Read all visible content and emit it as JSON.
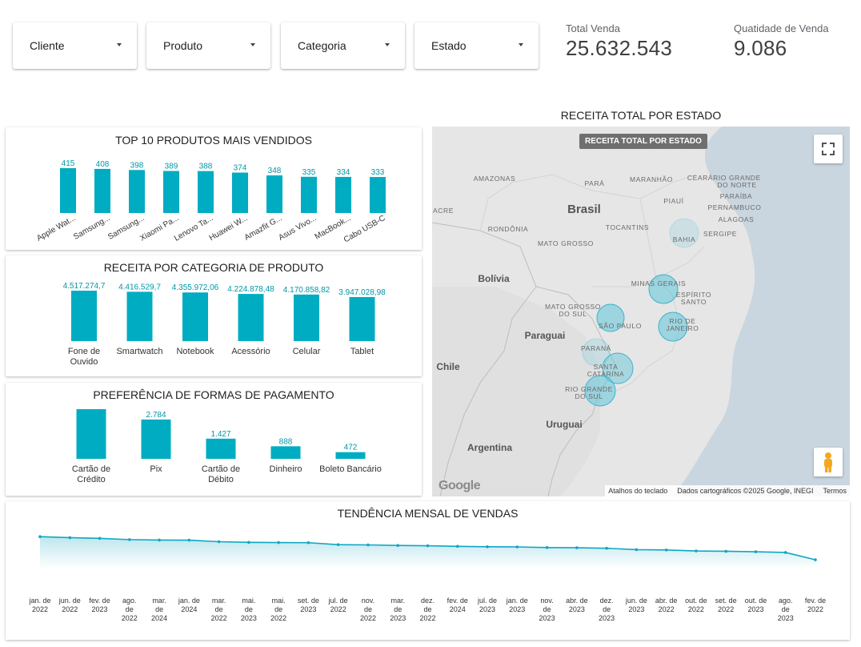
{
  "filters": [
    {
      "label": "Cliente"
    },
    {
      "label": "Produto"
    },
    {
      "label": "Categoria"
    },
    {
      "label": "Estado"
    }
  ],
  "kpis": {
    "total_venda": {
      "label": "Total Venda",
      "value": "25.632.543"
    },
    "quantidade_venda": {
      "label": "Quatidade de Venda",
      "value": "9.086"
    }
  },
  "colors": {
    "bar": "#00acc1",
    "label": "#0097a7",
    "line": "#11a6c4",
    "map_bubble": "#5ec4d8"
  },
  "chart_data": [
    {
      "type": "bar",
      "title": "TOP 10 PRODUTOS MAIS VENDIDOS",
      "categories": [
        "Apple Wat...",
        "Samsung...",
        "Samsung...",
        "Xiaomi Pa...",
        "Lenovo Ta...",
        "Huawei W...",
        "Amazfit G...",
        "Asus Vivo...",
        "MacBook...",
        "Cabo USB-C"
      ],
      "values": [
        415,
        408,
        398,
        389,
        388,
        374,
        348,
        335,
        334,
        333
      ],
      "value_labels": [
        "415",
        "408",
        "398",
        "389",
        "388",
        "374",
        "348",
        "335",
        "334",
        "333"
      ],
      "ylim": [
        0,
        415
      ]
    },
    {
      "type": "bar",
      "title": "RECEITA POR CATEGORIA DE PRODUTO",
      "categories": [
        [
          "Fone de",
          "Ouvido"
        ],
        [
          "Smartwatch"
        ],
        [
          "Notebook"
        ],
        [
          "Acessório"
        ],
        [
          "Celular"
        ],
        [
          "Tablet"
        ]
      ],
      "values": [
        4517274.7,
        4416529.7,
        4355972.06,
        4224878.48,
        4170858.82,
        3947028.98
      ],
      "value_labels": [
        "4.517.274,7",
        "4.416.529,7",
        "4.355.972,06",
        "4.224.878,48",
        "4.170.858,82",
        "3.947.028,98"
      ],
      "ylim": [
        0,
        4517274.7
      ]
    },
    {
      "type": "bar",
      "title": "PREFERÊNCIA DE FORMAS DE PAGAMENTO",
      "categories": [
        [
          "Cartão de",
          "Crédito"
        ],
        [
          "Pix"
        ],
        [
          "Cartão de",
          "Débito"
        ],
        [
          "Dinheiro"
        ],
        [
          "Boleto Bancário"
        ]
      ],
      "values": [
        3515,
        2784,
        1427,
        888,
        472
      ],
      "value_labels": [
        "",
        "2.784",
        "1.427",
        "888",
        "472"
      ],
      "ylim": [
        0,
        3515
      ]
    },
    {
      "type": "area",
      "title": "TENDÊNCIA MENSAL DE VENDAS",
      "x": [
        [
          "jan. de",
          "2022"
        ],
        [
          "jun. de",
          "2022"
        ],
        [
          "fev. de",
          "2023"
        ],
        [
          "ago.",
          "de",
          "2022"
        ],
        [
          "mar.",
          "de",
          "2024"
        ],
        [
          "jan. de",
          "2024"
        ],
        [
          "mar.",
          "de",
          "2022"
        ],
        [
          "mai.",
          "de",
          "2023"
        ],
        [
          "mai.",
          "de",
          "2022"
        ],
        [
          "set. de",
          "2023"
        ],
        [
          "jul. de",
          "2022"
        ],
        [
          "nov.",
          "de",
          "2022"
        ],
        [
          "mar.",
          "de",
          "2023"
        ],
        [
          "dez.",
          "de",
          "2022"
        ],
        [
          "fev. de",
          "2024"
        ],
        [
          "jul. de",
          "2023"
        ],
        [
          "jan. de",
          "2023"
        ],
        [
          "nov.",
          "de",
          "2023"
        ],
        [
          "abr. de",
          "2023"
        ],
        [
          "dez.",
          "de",
          "2023"
        ],
        [
          "jun. de",
          "2023"
        ],
        [
          "abr. de",
          "2022"
        ],
        [
          "out. de",
          "2022"
        ],
        [
          "set. de",
          "2022"
        ],
        [
          "out. de",
          "2023"
        ],
        [
          "ago.",
          "de",
          "2023"
        ],
        [
          "fev. de",
          "2022"
        ]
      ],
      "values": [
        1060000,
        1048000,
        1040000,
        1025000,
        1020000,
        1018000,
        1000000,
        992000,
        990000,
        988000,
        965000,
        962000,
        955000,
        952000,
        945000,
        940000,
        938000,
        930000,
        928000,
        922000,
        905000,
        902000,
        890000,
        886000,
        880000,
        872000,
        785000
      ],
      "ylim": [
        700000,
        1100000
      ]
    }
  ],
  "map": {
    "title": "RECEITA TOTAL POR ESTADO",
    "tag": "RECEITA TOTAL POR ESTADO",
    "google": "Google",
    "attribution": [
      "Atalhos do teclado",
      "Dados cartográficos ©2025 Google, INEGI",
      "Termos"
    ],
    "countries": [
      "Brasil",
      "Bolívia",
      "Paraguai",
      "Chile",
      "Uruguai",
      "Argentina"
    ],
    "regions": [
      [
        "AMAZONAS"
      ],
      [
        "PARÁ"
      ],
      [
        "MARANHÃO"
      ],
      [
        "CEARÁ"
      ],
      [
        "RIO GRANDE",
        "DO NORTE"
      ],
      [
        "PARAÍBA"
      ],
      [
        "PIAUÍ"
      ],
      [
        "PERNAMBUCO"
      ],
      [
        "ALAGOAS"
      ],
      [
        "ACRE"
      ],
      [
        "RONDÔNIA"
      ],
      [
        "TOCANTINS"
      ],
      [
        "SERGIPE"
      ],
      [
        "BAHIA"
      ],
      [
        "MATO GROSSO"
      ],
      [
        "MINAS GERAIS"
      ],
      [
        "ESPÍRITO",
        "SANTO"
      ],
      [
        "MATO GROSSO",
        "DO SUL"
      ],
      [
        "SÃO PAULO"
      ],
      [
        "RIO DE",
        "JANEIRO"
      ],
      [
        "PARANÁ"
      ],
      [
        "SANTA",
        "CATARINA"
      ],
      [
        "RIO GRANDE",
        "DO SUL"
      ]
    ],
    "bubble_icons": [
      "bubble-bahia",
      "bubble-minas-gerais",
      "bubble-sao-paulo",
      "bubble-rio-de-janeiro",
      "bubble-parana",
      "bubble-santa-catarina",
      "bubble-rio-grande-do-sul"
    ]
  }
}
